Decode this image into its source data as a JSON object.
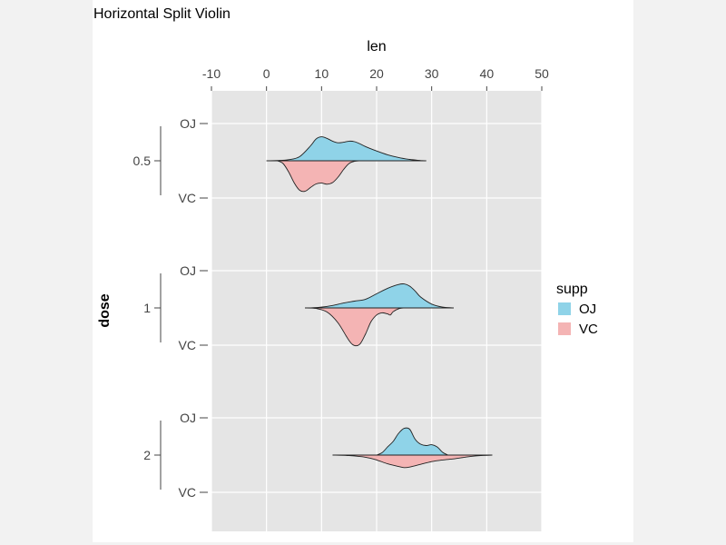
{
  "chart_data": {
    "type": "violin",
    "title": "Horizontal Split Violin",
    "xlabel": "len",
    "ylabel": "dose",
    "xlim": [
      -10,
      50
    ],
    "x_ticks": [
      -10,
      0,
      10,
      20,
      30,
      40,
      50
    ],
    "groups": [
      "0.5",
      "1",
      "2"
    ],
    "subgroup_ticks": [
      "OJ",
      "VC"
    ],
    "legend": {
      "title": "supp",
      "position": "right",
      "entries": [
        {
          "name": "OJ",
          "color": "#8fd3e8"
        },
        {
          "name": "VC",
          "color": "#f4b4b4"
        }
      ]
    },
    "grid": true,
    "series": [
      {
        "name": "OJ",
        "group": "0.5",
        "side": "top",
        "color": "#8fd3e8",
        "density": [
          [
            0,
            0
          ],
          [
            2,
            0.01
          ],
          [
            4,
            0.04
          ],
          [
            6,
            0.15
          ],
          [
            8,
            0.55
          ],
          [
            9,
            0.8
          ],
          [
            10,
            0.88
          ],
          [
            11,
            0.82
          ],
          [
            12,
            0.72
          ],
          [
            13,
            0.66
          ],
          [
            14,
            0.68
          ],
          [
            15,
            0.72
          ],
          [
            16,
            0.7
          ],
          [
            17,
            0.62
          ],
          [
            18,
            0.52
          ],
          [
            20,
            0.36
          ],
          [
            22,
            0.22
          ],
          [
            24,
            0.12
          ],
          [
            26,
            0.05
          ],
          [
            28,
            0.01
          ],
          [
            29,
            0
          ]
        ]
      },
      {
        "name": "VC",
        "group": "0.5",
        "side": "bottom",
        "color": "#f4b4b4",
        "density": [
          [
            2,
            0
          ],
          [
            3,
            0.1
          ],
          [
            4,
            0.4
          ],
          [
            5,
            0.8
          ],
          [
            6,
            1.08
          ],
          [
            7,
            1.12
          ],
          [
            8,
            0.98
          ],
          [
            9,
            0.85
          ],
          [
            10,
            0.82
          ],
          [
            11,
            0.86
          ],
          [
            12,
            0.8
          ],
          [
            13,
            0.6
          ],
          [
            14,
            0.32
          ],
          [
            15,
            0.1
          ],
          [
            16,
            0.02
          ],
          [
            17,
            0
          ]
        ]
      },
      {
        "name": "OJ",
        "group": "1",
        "side": "top",
        "color": "#8fd3e8",
        "density": [
          [
            8,
            0
          ],
          [
            10,
            0.03
          ],
          [
            12,
            0.09
          ],
          [
            14,
            0.18
          ],
          [
            16,
            0.25
          ],
          [
            18,
            0.32
          ],
          [
            20,
            0.52
          ],
          [
            22,
            0.72
          ],
          [
            24,
            0.86
          ],
          [
            25,
            0.88
          ],
          [
            26,
            0.8
          ],
          [
            27,
            0.62
          ],
          [
            28,
            0.4
          ],
          [
            30,
            0.14
          ],
          [
            32,
            0.03
          ],
          [
            34,
            0
          ]
        ]
      },
      {
        "name": "VC",
        "group": "1",
        "side": "bottom",
        "color": "#f4b4b4",
        "density": [
          [
            7,
            0
          ],
          [
            9,
            0.02
          ],
          [
            11,
            0.15
          ],
          [
            13,
            0.55
          ],
          [
            15,
            1.2
          ],
          [
            16,
            1.38
          ],
          [
            17,
            1.32
          ],
          [
            18,
            0.95
          ],
          [
            19,
            0.5
          ],
          [
            20,
            0.26
          ],
          [
            21,
            0.18
          ],
          [
            22,
            0.22
          ],
          [
            22.5,
            0.26
          ],
          [
            23,
            0.14
          ],
          [
            24,
            0.03
          ],
          [
            25,
            0
          ]
        ]
      },
      {
        "name": "OJ",
        "group": "2",
        "side": "top",
        "color": "#8fd3e8",
        "density": [
          [
            20,
            0
          ],
          [
            21,
            0.09
          ],
          [
            22,
            0.3
          ],
          [
            23,
            0.5
          ],
          [
            24,
            0.8
          ],
          [
            25,
            0.98
          ],
          [
            26,
            0.95
          ],
          [
            27,
            0.58
          ],
          [
            28,
            0.4
          ],
          [
            29,
            0.35
          ],
          [
            30,
            0.38
          ],
          [
            31,
            0.3
          ],
          [
            32,
            0.1
          ],
          [
            33,
            0
          ]
        ]
      },
      {
        "name": "VC",
        "group": "2",
        "side": "bottom",
        "color": "#f4b4b4",
        "density": [
          [
            12,
            0
          ],
          [
            15,
            0.02
          ],
          [
            18,
            0.08
          ],
          [
            20,
            0.18
          ],
          [
            22,
            0.32
          ],
          [
            24,
            0.42
          ],
          [
            25,
            0.46
          ],
          [
            26,
            0.44
          ],
          [
            28,
            0.34
          ],
          [
            30,
            0.24
          ],
          [
            32,
            0.18
          ],
          [
            34,
            0.14
          ],
          [
            36,
            0.08
          ],
          [
            38,
            0.03
          ],
          [
            41,
            0
          ]
        ]
      }
    ]
  }
}
